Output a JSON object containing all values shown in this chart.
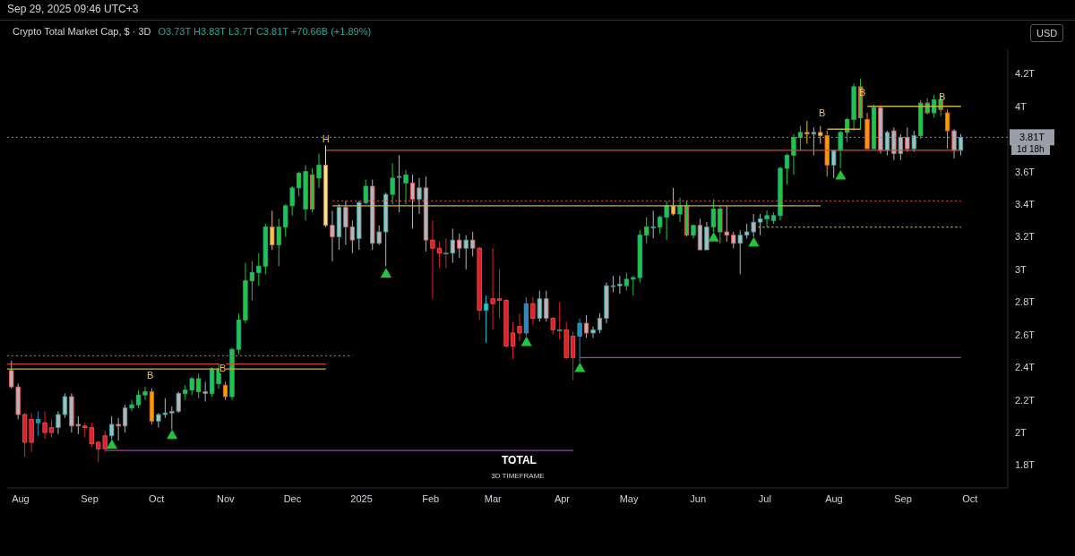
{
  "chart_data": {
    "type": "candlestick",
    "title": "Crypto Total Market Cap, $ · 3D",
    "subtitle": "O3.73T H3.83T L3.7T C3.81T +70.66B (+1.89%)",
    "x": [
      "2024-07-28",
      "2024-07-31",
      "2024-08-03",
      "2024-08-06",
      "2024-08-09",
      "2024-08-12",
      "2024-08-15",
      "2024-08-18",
      "2024-08-21",
      "2024-08-24",
      "2024-08-27",
      "2024-08-30",
      "2024-09-02",
      "2024-09-05",
      "2024-09-08",
      "2024-09-11",
      "2024-09-14",
      "2024-09-17",
      "2024-09-20",
      "2024-09-23",
      "2024-09-26",
      "2024-09-29",
      "2024-10-02",
      "2024-10-05",
      "2024-10-08",
      "2024-10-11",
      "2024-10-14",
      "2024-10-17",
      "2024-10-20",
      "2024-10-23",
      "2024-10-26",
      "2024-10-29",
      "2024-11-01",
      "2024-11-04",
      "2024-11-07",
      "2024-11-10",
      "2024-11-13",
      "2024-11-16",
      "2024-11-19",
      "2024-11-22",
      "2024-11-25",
      "2024-11-28",
      "2024-12-01",
      "2024-12-04",
      "2024-12-07",
      "2024-12-10",
      "2024-12-13",
      "2024-12-16",
      "2024-12-19",
      "2024-12-22",
      "2024-12-25",
      "2024-12-28",
      "2024-12-31",
      "2025-01-03",
      "2025-01-06",
      "2025-01-09",
      "2025-01-12",
      "2025-01-15",
      "2025-01-18",
      "2025-01-21",
      "2025-01-24",
      "2025-01-27",
      "2025-01-30",
      "2025-02-02",
      "2025-02-05",
      "2025-02-08",
      "2025-02-11",
      "2025-02-14",
      "2025-02-17",
      "2025-02-20",
      "2025-02-23",
      "2025-02-26",
      "2025-03-01",
      "2025-03-04",
      "2025-03-07",
      "2025-03-10",
      "2025-03-13",
      "2025-03-16",
      "2025-03-19",
      "2025-03-22",
      "2025-03-25",
      "2025-03-28",
      "2025-03-31",
      "2025-04-03",
      "2025-04-06",
      "2025-04-09",
      "2025-04-12",
      "2025-04-15",
      "2025-04-18",
      "2025-04-21",
      "2025-04-24",
      "2025-04-27",
      "2025-04-30",
      "2025-05-03",
      "2025-05-06",
      "2025-05-09",
      "2025-05-12",
      "2025-05-15",
      "2025-05-18",
      "2025-05-21",
      "2025-05-24",
      "2025-05-27",
      "2025-05-30",
      "2025-06-02",
      "2025-06-05",
      "2025-06-08",
      "2025-06-11",
      "2025-06-14",
      "2025-06-17",
      "2025-06-20",
      "2025-06-23",
      "2025-06-26",
      "2025-06-29",
      "2025-07-02",
      "2025-07-05",
      "2025-07-08",
      "2025-07-11",
      "2025-07-14",
      "2025-07-17",
      "2025-07-20",
      "2025-07-23",
      "2025-07-26",
      "2025-07-29",
      "2025-08-01",
      "2025-08-04",
      "2025-08-07",
      "2025-08-10",
      "2025-08-13",
      "2025-08-16",
      "2025-08-19",
      "2025-08-22",
      "2025-08-25",
      "2025-08-28",
      "2025-08-31",
      "2025-09-03",
      "2025-09-06",
      "2025-09-09",
      "2025-09-12",
      "2025-09-15",
      "2025-09-18",
      "2025-09-21",
      "2025-09-24",
      "2025-09-27"
    ],
    "ohlc": [
      [
        2.38,
        2.44,
        2.27,
        2.28
      ],
      [
        2.28,
        2.3,
        2.08,
        2.11
      ],
      [
        2.11,
        2.12,
        1.85,
        1.94
      ],
      [
        2.08,
        2.12,
        1.88,
        1.94
      ],
      [
        2.06,
        2.13,
        1.98,
        2.08
      ],
      [
        2.06,
        2.13,
        1.96,
        2.0
      ],
      [
        2.03,
        2.08,
        1.97,
        2.0
      ],
      [
        2.03,
        2.13,
        1.99,
        2.11
      ],
      [
        2.11,
        2.24,
        2.09,
        2.22
      ],
      [
        2.22,
        2.24,
        2.0,
        2.04
      ],
      [
        2.05,
        2.1,
        1.99,
        2.04
      ],
      [
        2.04,
        2.06,
        1.97,
        2.03
      ],
      [
        2.03,
        2.06,
        1.91,
        1.93
      ],
      [
        1.94,
        1.95,
        1.82,
        1.9
      ],
      [
        1.98,
        2.01,
        1.88,
        1.9
      ],
      [
        1.98,
        2.1,
        1.96,
        2.05
      ],
      [
        2.05,
        2.09,
        1.95,
        2.04
      ],
      [
        2.04,
        2.17,
        2.0,
        2.15
      ],
      [
        2.15,
        2.2,
        2.13,
        2.17
      ],
      [
        2.17,
        2.26,
        2.15,
        2.23
      ],
      [
        2.23,
        2.28,
        2.2,
        2.25
      ],
      [
        2.25,
        2.27,
        2.05,
        2.07
      ],
      [
        2.07,
        2.12,
        2.03,
        2.11
      ],
      [
        2.11,
        2.21,
        2.09,
        2.12
      ],
      [
        2.12,
        2.16,
        2.02,
        2.13
      ],
      [
        2.13,
        2.25,
        2.12,
        2.24
      ],
      [
        2.24,
        2.29,
        2.2,
        2.26
      ],
      [
        2.26,
        2.34,
        2.23,
        2.33
      ],
      [
        2.25,
        2.36,
        2.21,
        2.33
      ],
      [
        2.25,
        2.31,
        2.19,
        2.24
      ],
      [
        2.24,
        2.4,
        2.22,
        2.39
      ],
      [
        2.3,
        2.42,
        2.27,
        2.39
      ],
      [
        2.29,
        2.31,
        2.2,
        2.22
      ],
      [
        2.22,
        2.52,
        2.2,
        2.51
      ],
      [
        2.51,
        2.73,
        2.48,
        2.69
      ],
      [
        2.69,
        3.04,
        2.67,
        2.93
      ],
      [
        2.93,
        3.05,
        2.81,
        2.98
      ],
      [
        2.98,
        3.1,
        2.9,
        3.02
      ],
      [
        3.02,
        3.28,
        2.97,
        3.26
      ],
      [
        3.26,
        3.36,
        3.12,
        3.15
      ],
      [
        3.15,
        3.31,
        3.02,
        3.26
      ],
      [
        3.26,
        3.4,
        3.2,
        3.39
      ],
      [
        3.39,
        3.51,
        3.33,
        3.5
      ],
      [
        3.5,
        3.6,
        3.45,
        3.59
      ],
      [
        3.37,
        3.64,
        3.3,
        3.6
      ],
      [
        3.58,
        3.62,
        3.35,
        3.37
      ],
      [
        3.56,
        3.71,
        3.5,
        3.64
      ],
      [
        3.64,
        3.76,
        3.26,
        3.27
      ],
      [
        3.27,
        3.36,
        3.05,
        3.2
      ],
      [
        3.2,
        3.4,
        3.12,
        3.38
      ],
      [
        3.38,
        3.42,
        3.15,
        3.26
      ],
      [
        3.26,
        3.3,
        3.1,
        3.18
      ],
      [
        3.19,
        3.42,
        3.12,
        3.41
      ],
      [
        3.41,
        3.55,
        3.4,
        3.51
      ],
      [
        3.51,
        3.55,
        3.12,
        3.16
      ],
      [
        3.16,
        3.27,
        3.15,
        3.23
      ],
      [
        3.23,
        3.47,
        3.02,
        3.46
      ],
      [
        3.46,
        3.65,
        3.4,
        3.56
      ],
      [
        3.57,
        3.7,
        3.35,
        3.57
      ],
      [
        3.53,
        3.61,
        3.4,
        3.58
      ],
      [
        3.53,
        3.58,
        3.25,
        3.43
      ],
      [
        3.43,
        3.56,
        3.34,
        3.5
      ],
      [
        3.5,
        3.57,
        3.11,
        3.18
      ],
      [
        3.18,
        3.3,
        2.82,
        3.13
      ],
      [
        3.13,
        3.17,
        3.01,
        3.1
      ],
      [
        3.1,
        3.19,
        3.01,
        3.1
      ],
      [
        3.1,
        3.25,
        3.04,
        3.18
      ],
      [
        3.18,
        3.22,
        3.07,
        3.13
      ],
      [
        3.13,
        3.21,
        3.0,
        3.18
      ],
      [
        3.18,
        3.23,
        3.08,
        3.13
      ],
      [
        3.13,
        3.14,
        2.69,
        2.75
      ],
      [
        2.75,
        2.84,
        2.55,
        2.79
      ],
      [
        2.82,
        3.13,
        2.63,
        2.79
      ],
      [
        2.82,
        3.0,
        2.7,
        2.81
      ],
      [
        2.81,
        2.82,
        2.52,
        2.53
      ],
      [
        2.61,
        2.68,
        2.45,
        2.53
      ],
      [
        2.65,
        2.73,
        2.56,
        2.61
      ],
      [
        2.61,
        2.83,
        2.59,
        2.79
      ],
      [
        2.79,
        2.83,
        2.66,
        2.7
      ],
      [
        2.7,
        2.87,
        2.68,
        2.82
      ],
      [
        2.82,
        2.87,
        2.68,
        2.7
      ],
      [
        2.7,
        2.71,
        2.6,
        2.63
      ],
      [
        2.63,
        2.8,
        2.57,
        2.63
      ],
      [
        2.63,
        2.68,
        2.45,
        2.46
      ],
      [
        2.59,
        2.62,
        2.32,
        2.46
      ],
      [
        2.59,
        2.7,
        2.43,
        2.67
      ],
      [
        2.67,
        2.72,
        2.58,
        2.61
      ],
      [
        2.61,
        2.65,
        2.58,
        2.63
      ],
      [
        2.63,
        2.73,
        2.61,
        2.7
      ],
      [
        2.7,
        2.92,
        2.67,
        2.9
      ],
      [
        2.9,
        2.96,
        2.86,
        2.9
      ],
      [
        2.9,
        2.96,
        2.85,
        2.91
      ],
      [
        2.9,
        2.98,
        2.87,
        2.94
      ],
      [
        2.94,
        2.96,
        2.84,
        2.95
      ],
      [
        2.95,
        3.24,
        2.92,
        3.21
      ],
      [
        3.21,
        3.32,
        3.16,
        3.26
      ],
      [
        3.26,
        3.36,
        3.19,
        3.26
      ],
      [
        3.26,
        3.33,
        3.22,
        3.32
      ],
      [
        3.32,
        3.42,
        3.18,
        3.39
      ],
      [
        3.39,
        3.5,
        3.33,
        3.34
      ],
      [
        3.34,
        3.44,
        3.29,
        3.39
      ],
      [
        3.39,
        3.42,
        3.2,
        3.21
      ],
      [
        3.21,
        3.27,
        3.19,
        3.27
      ],
      [
        3.27,
        3.31,
        3.12,
        3.12
      ],
      [
        3.12,
        3.29,
        3.12,
        3.26
      ],
      [
        3.26,
        3.43,
        3.23,
        3.37
      ],
      [
        3.37,
        3.39,
        3.16,
        3.23
      ],
      [
        3.23,
        3.39,
        3.17,
        3.21
      ],
      [
        3.21,
        3.23,
        3.13,
        3.16
      ],
      [
        3.16,
        3.24,
        2.97,
        3.21
      ],
      [
        3.21,
        3.28,
        3.19,
        3.23
      ],
      [
        3.23,
        3.34,
        3.2,
        3.29
      ],
      [
        3.29,
        3.34,
        3.21,
        3.31
      ],
      [
        3.31,
        3.36,
        3.26,
        3.33
      ],
      [
        3.3,
        3.35,
        3.28,
        3.33
      ],
      [
        3.33,
        3.63,
        3.3,
        3.62
      ],
      [
        3.62,
        3.71,
        3.52,
        3.7
      ],
      [
        3.7,
        3.83,
        3.58,
        3.81
      ],
      [
        3.81,
        3.88,
        3.73,
        3.84
      ],
      [
        3.84,
        3.91,
        3.77,
        3.83
      ],
      [
        3.83,
        3.87,
        3.7,
        3.84
      ],
      [
        3.84,
        3.88,
        3.77,
        3.82
      ],
      [
        3.82,
        3.85,
        3.57,
        3.64
      ],
      [
        3.64,
        3.73,
        3.56,
        3.73
      ],
      [
        3.73,
        3.85,
        3.62,
        3.84
      ],
      [
        3.84,
        3.93,
        3.78,
        3.92
      ],
      [
        3.92,
        4.14,
        3.85,
        4.12
      ],
      [
        4.12,
        4.17,
        3.86,
        3.93
      ],
      [
        3.92,
        3.96,
        3.74,
        3.74
      ],
      [
        3.74,
        4.01,
        3.74,
        3.99
      ],
      [
        3.99,
        4.0,
        3.71,
        3.73
      ],
      [
        3.73,
        3.85,
        3.7,
        3.84
      ],
      [
        3.85,
        3.87,
        3.67,
        3.71
      ],
      [
        3.71,
        3.83,
        3.67,
        3.81
      ],
      [
        3.81,
        3.87,
        3.72,
        3.74
      ],
      [
        3.74,
        3.85,
        3.72,
        3.82
      ],
      [
        3.82,
        4.04,
        3.8,
        4.02
      ],
      [
        4.02,
        4.05,
        3.95,
        3.96
      ],
      [
        3.96,
        4.07,
        3.93,
        4.04
      ],
      [
        4.04,
        4.07,
        3.94,
        3.98
      ],
      [
        3.96,
        3.98,
        3.74,
        3.85
      ],
      [
        3.85,
        3.86,
        3.68,
        3.73
      ],
      [
        3.73,
        3.83,
        3.7,
        3.81
      ]
    ],
    "colors": [
      "#b2b5be",
      "#b2b5be",
      "#e0202a",
      "#e0202a",
      "#2e86c1",
      "#e0202a",
      "#e0202a",
      "#b2b5be",
      "#b2b5be",
      "#b2b5be",
      "#b2b5be",
      "#e0202a",
      "#e0202a",
      "#e0202a",
      "#e0202a",
      "#b2b5be",
      "#b2b5be",
      "#b2b5be",
      "#1ec83c",
      "#1ec83c",
      "#1ec83c",
      "#ff9800",
      "#b2b5be",
      "#b2b5be",
      "#b2b5be",
      "#b2b5be",
      "#1ec83c",
      "#1ec83c",
      "#1ec83c",
      "#b2b5be",
      "#1ec83c",
      "#1ec83c",
      "#ff9800",
      "#1ec83c",
      "#1ec83c",
      "#1ec83c",
      "#1ec83c",
      "#1ec83c",
      "#1ec83c",
      "#f5c242",
      "#1ec83c",
      "#1ec83c",
      "#1ec83c",
      "#1ec83c",
      "#1ec83c",
      "#1ec83c",
      "#1ec83c",
      "#ffe08a",
      "#b2b5be",
      "#b2b5be",
      "#b2b5be",
      "#b2b5be",
      "#b2b5be",
      "#1ec83c",
      "#b2b5be",
      "#b2b5be",
      "#b2b5be",
      "#1ec83c",
      "#b2b5be",
      "#1ec83c",
      "#b2b5be",
      "#b2b5be",
      "#b2b5be",
      "#e0202a",
      "#e0202a",
      "#e0202a",
      "#b2b5be",
      "#b2b5be",
      "#b2b5be",
      "#b2b5be",
      "#e0202a",
      "#26c6da",
      "#e0202a",
      "#e0202a",
      "#e0202a",
      "#e0202a",
      "#e0202a",
      "#2e86c1",
      "#e0202a",
      "#b2b5be",
      "#b2b5be",
      "#e0202a",
      "#e0202a",
      "#e0202a",
      "#e0202a",
      "#2e86c1",
      "#b2b5be",
      "#b2b5be",
      "#b2b5be",
      "#b2b5be",
      "#b2b5be",
      "#b2b5be",
      "#1ec83c",
      "#1ec83c",
      "#1ec83c",
      "#1ec83c",
      "#b2b5be",
      "#1ec83c",
      "#1ec83c",
      "#f5c242",
      "#1ec83c",
      "#1ec83c",
      "#1ec83c",
      "#b2b5be",
      "#b2b5be",
      "#1ec83c",
      "#1ec83c",
      "#b2b5be",
      "#b2b5be",
      "#b2b5be",
      "#b2b5be",
      "#b2b5be",
      "#b2b5be",
      "#1ec83c",
      "#1ec83c",
      "#1ec83c",
      "#1ec83c",
      "#1ec83c",
      "#1ec83c",
      "#f5c242",
      "#b2b5be",
      "#f5c242",
      "#ff9800",
      "#b2b5be",
      "#1ec83c",
      "#1ec83c",
      "#1ec83c",
      "#1ec83c",
      "#ff9800",
      "#1ec83c",
      "#b2b5be",
      "#b2b5be",
      "#b2b5be",
      "#b2b5be",
      "#b2b5be",
      "#b2b5be",
      "#1ec83c",
      "#1ec83c",
      "#1ec83c",
      "#1ec83c",
      "#ff9800",
      "#b2b5be",
      "#b2b5be"
    ],
    "series": [
      {
        "type": "line",
        "x": [
          "2024-07-26",
          "2024-12-16"
        ],
        "values": [
          2.42,
          2.42
        ],
        "color": "#d04848",
        "line_style": "solid"
      },
      {
        "type": "line",
        "x": [
          "2024-07-26",
          "2024-12-16"
        ],
        "values": [
          2.39,
          2.39
        ],
        "color": "#c9b43a",
        "line_style": "solid"
      },
      {
        "type": "line",
        "x": [
          "2024-07-26",
          "2024-12-28"
        ],
        "values": [
          2.47,
          2.47
        ],
        "color": "#d04848",
        "line_style": "dotted"
      },
      {
        "type": "line",
        "x": [
          "2024-12-16",
          "2025-09-27"
        ],
        "values": [
          3.73,
          3.73
        ],
        "color": "#d04848",
        "line_style": "solid"
      },
      {
        "type": "line",
        "x": [
          "2024-12-19",
          "2025-07-26"
        ],
        "values": [
          3.39,
          3.39
        ],
        "color": "#c9b43a",
        "line_style": "solid"
      },
      {
        "type": "line",
        "x": [
          "2024-12-19",
          "2025-09-27"
        ],
        "values": [
          3.42,
          3.42
        ],
        "color": "#d04848",
        "line_style": "dotted"
      },
      {
        "type": "line",
        "x": [
          "2025-06-26",
          "2025-09-27"
        ],
        "values": [
          3.26,
          3.26
        ],
        "color": "#c9b43a",
        "line_style": "dotted"
      },
      {
        "type": "line",
        "x": [
          "2024-09-08",
          "2025-04-06"
        ],
        "values": [
          1.89,
          1.89
        ],
        "color": "#a33fb8",
        "line_style": "solid"
      },
      {
        "type": "line",
        "x": [
          "2025-04-09",
          "2025-09-27"
        ],
        "values": [
          2.46,
          2.46
        ],
        "color": "#a33fb8",
        "line_style": "solid"
      },
      {
        "type": "line",
        "x": [
          "2025-07-29",
          "2025-08-13"
        ],
        "values": [
          3.86,
          3.86
        ],
        "color": "#c9b43a",
        "line_style": "solid"
      },
      {
        "type": "line",
        "x": [
          "2025-08-16",
          "2025-09-27"
        ],
        "values": [
          4.0,
          4.0
        ],
        "color": "#c9b43a",
        "line_style": "solid"
      },
      {
        "type": "scatter",
        "x": [
          "2024-09-11",
          "2024-10-08",
          "2025-01-12",
          "2025-03-16",
          "2025-04-09",
          "2025-06-08",
          "2025-06-26",
          "2025-08-04"
        ],
        "values": [
          1.92,
          1.98,
          2.97,
          2.55,
          2.39,
          3.19,
          3.16,
          3.57
        ],
        "color": "#22c43a",
        "marker": "triangle"
      }
    ],
    "ref_lines": [
      {
        "axis": "y",
        "value": 3.81,
        "label": "3.81T",
        "color": "#8a8f99",
        "line_style": "dotted"
      }
    ],
    "annotations": [
      "Sep 29, 2025 09:46 UTC+3",
      "TOTAL",
      "3D TIMEFRAME",
      "USD",
      "1d 18h",
      "B",
      "B",
      "B",
      "B",
      "B",
      {
        "text": "H",
        "x": "2024-12-16",
        "y": 3.8
      }
    ],
    "xlim": [
      "2024-07-26",
      "2025-10-18"
    ],
    "xticks": [
      {
        "value": "2024-08-01",
        "label": "Aug"
      },
      {
        "value": "2024-09-01",
        "label": "Sep"
      },
      {
        "value": "2024-10-01",
        "label": "Oct"
      },
      {
        "value": "2024-11-01",
        "label": "Nov"
      },
      {
        "value": "2024-12-01",
        "label": "Dec"
      },
      {
        "value": "2025-01-01",
        "label": "2025"
      },
      {
        "value": "2025-02-01",
        "label": "Feb"
      },
      {
        "value": "2025-03-01",
        "label": "Mar"
      },
      {
        "value": "2025-04-01",
        "label": "Apr"
      },
      {
        "value": "2025-05-01",
        "label": "May"
      },
      {
        "value": "2025-06-01",
        "label": "Jun"
      },
      {
        "value": "2025-07-01",
        "label": "Jul"
      },
      {
        "value": "2025-08-01",
        "label": "Aug"
      },
      {
        "value": "2025-09-01",
        "label": "Sep"
      },
      {
        "value": "2025-10-01",
        "label": "Oct"
      }
    ],
    "ylim": [
      1.66,
      4.35
    ],
    "yticks": [
      {
        "value": 1.8,
        "label": "1.8T"
      },
      {
        "value": 2,
        "label": "2T"
      },
      {
        "value": 2.2,
        "label": "2.2T"
      },
      {
        "value": 2.4,
        "label": "2.4T"
      },
      {
        "value": 2.6,
        "label": "2.6T"
      },
      {
        "value": 2.8,
        "label": "2.8T"
      },
      {
        "value": 3,
        "label": "3T"
      },
      {
        "value": 3.2,
        "label": "3.2T"
      },
      {
        "value": 3.4,
        "label": "3.4T"
      },
      {
        "value": 3.6,
        "label": "3.6T"
      },
      {
        "value": 4,
        "label": "4T"
      },
      {
        "value": 4.2,
        "label": "4.2T"
      }
    ]
  }
}
